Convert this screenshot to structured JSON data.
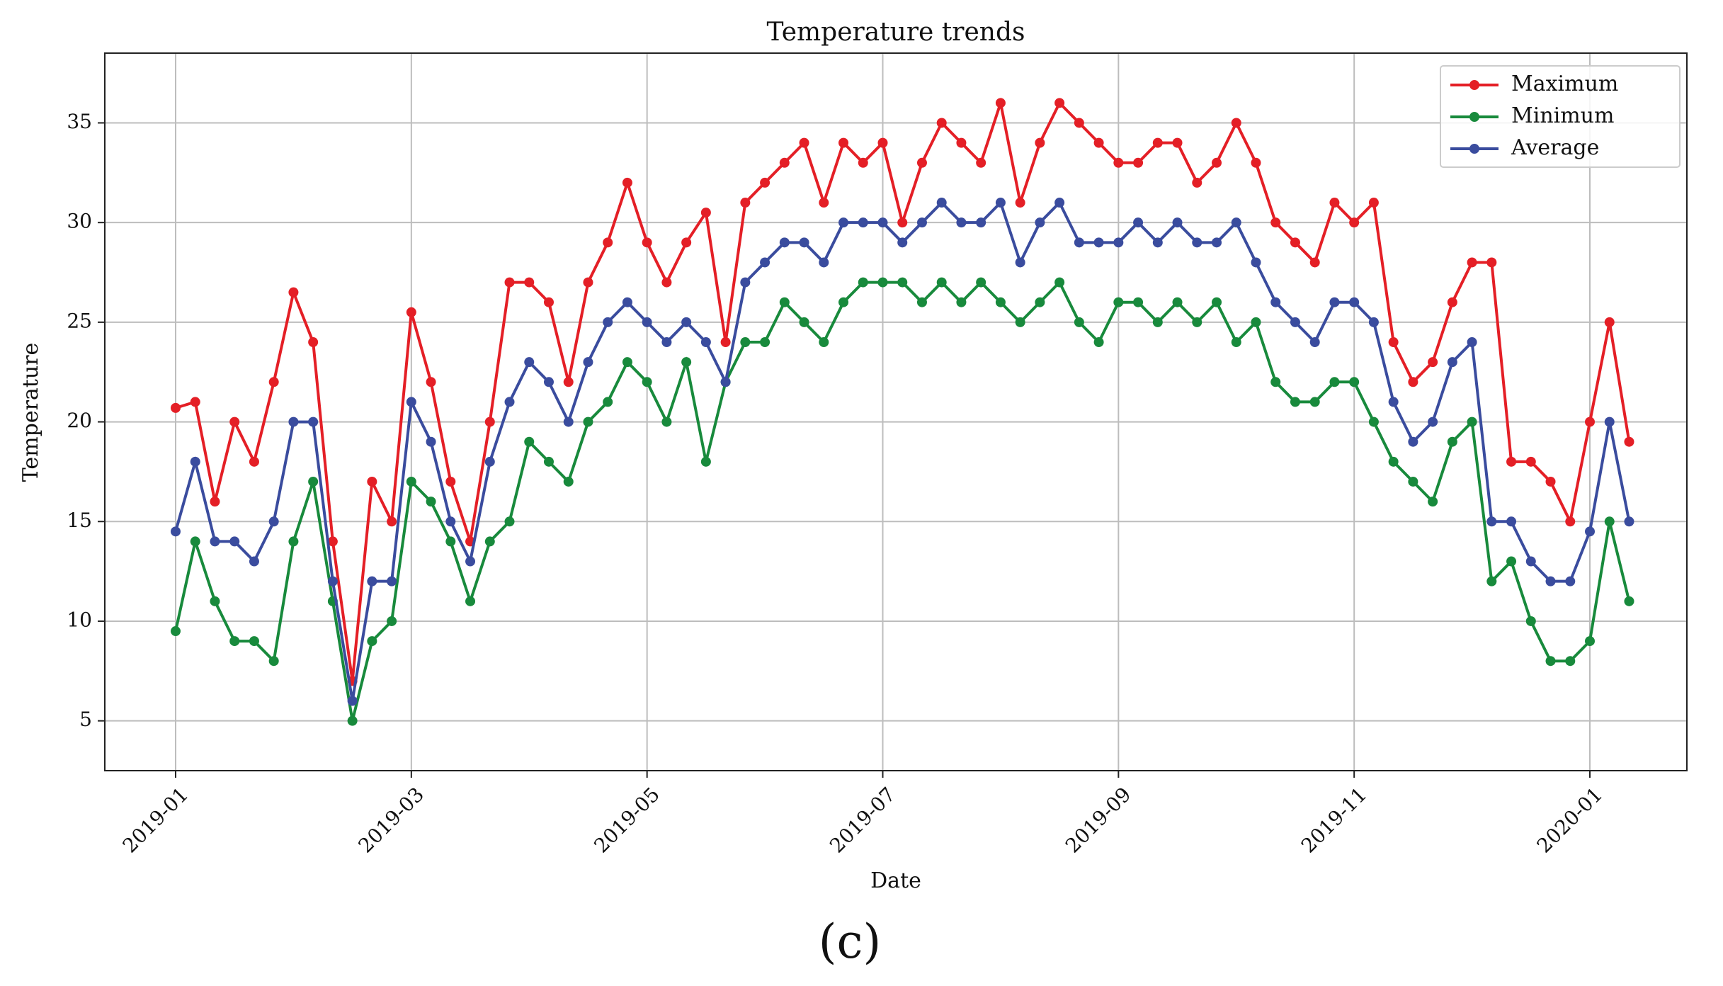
{
  "chart_data": {
    "type": "line",
    "title": "Temperature trends",
    "xlabel": "Date",
    "ylabel": "Temperature",
    "caption": "(c)",
    "categories": [
      "2019-01",
      null,
      null,
      null,
      null,
      null,
      null,
      null,
      null,
      null,
      null,
      null,
      "2019-03",
      null,
      null,
      null,
      null,
      null,
      null,
      null,
      null,
      null,
      null,
      null,
      "2019-05",
      null,
      null,
      null,
      null,
      null,
      null,
      null,
      null,
      null,
      null,
      null,
      "2019-07",
      null,
      null,
      null,
      null,
      null,
      null,
      null,
      null,
      null,
      null,
      null,
      "2019-09",
      null,
      null,
      null,
      null,
      null,
      null,
      null,
      null,
      null,
      null,
      null,
      "2019-11",
      null,
      null,
      null,
      null,
      null,
      null,
      null,
      null,
      null,
      null,
      null,
      "2020-01",
      null,
      null
    ],
    "series": [
      {
        "name": "Maximum",
        "color": "#e41f26",
        "values": [
          20.7,
          21,
          16,
          20,
          18,
          22,
          26.5,
          24,
          14,
          7,
          17,
          15,
          25.5,
          22,
          17,
          14,
          20,
          27,
          27,
          26,
          22,
          27,
          29,
          32,
          29,
          27,
          29,
          30.5,
          24,
          31,
          32,
          33,
          34,
          31,
          34,
          33,
          34,
          30,
          33,
          35,
          34,
          33,
          36,
          31,
          34,
          36,
          35,
          34,
          33,
          33,
          34,
          34,
          32,
          33,
          35,
          33,
          30,
          29,
          28,
          31,
          30,
          31,
          24,
          22,
          23,
          26,
          28,
          28,
          18,
          18,
          17,
          15,
          20,
          25,
          19
        ]
      },
      {
        "name": "Minimum",
        "color": "#188a3c",
        "values": [
          9.5,
          14,
          11,
          9,
          9,
          8,
          14,
          17,
          11,
          5,
          9,
          10,
          17,
          16,
          14,
          11,
          14,
          15,
          19,
          18,
          17,
          20,
          21,
          23,
          22,
          20,
          23,
          18,
          22,
          24,
          24,
          26,
          25,
          24,
          26,
          27,
          27,
          27,
          26,
          27,
          26,
          27,
          26,
          25,
          26,
          27,
          25,
          24,
          26,
          26,
          25,
          26,
          25,
          26,
          24,
          25,
          22,
          21,
          21,
          22,
          22,
          20,
          18,
          17,
          16,
          19,
          20,
          12,
          13,
          10,
          8,
          8,
          9,
          15,
          11
        ]
      },
      {
        "name": "Average",
        "color": "#3a4c9e",
        "values": [
          14.5,
          18,
          14,
          14,
          13,
          15,
          20,
          20,
          12,
          6,
          12,
          12,
          21,
          19,
          15,
          13,
          18,
          21,
          23,
          22,
          20,
          23,
          25,
          26,
          25,
          24,
          25,
          24,
          22,
          27,
          28,
          29,
          29,
          28,
          30,
          30,
          30,
          29,
          30,
          31,
          30,
          30,
          31,
          28,
          30,
          31,
          29,
          29,
          29,
          30,
          29,
          30,
          29,
          29,
          30,
          28,
          26,
          25,
          24,
          26,
          26,
          25,
          21,
          19,
          20,
          23,
          24,
          15,
          15,
          13,
          12,
          12,
          14.5,
          20,
          15
        ]
      }
    ],
    "ylim": [
      2.5,
      38.5
    ],
    "yticks": [
      5,
      10,
      15,
      20,
      25,
      30,
      35
    ],
    "grid": true,
    "legend": "upper right"
  }
}
